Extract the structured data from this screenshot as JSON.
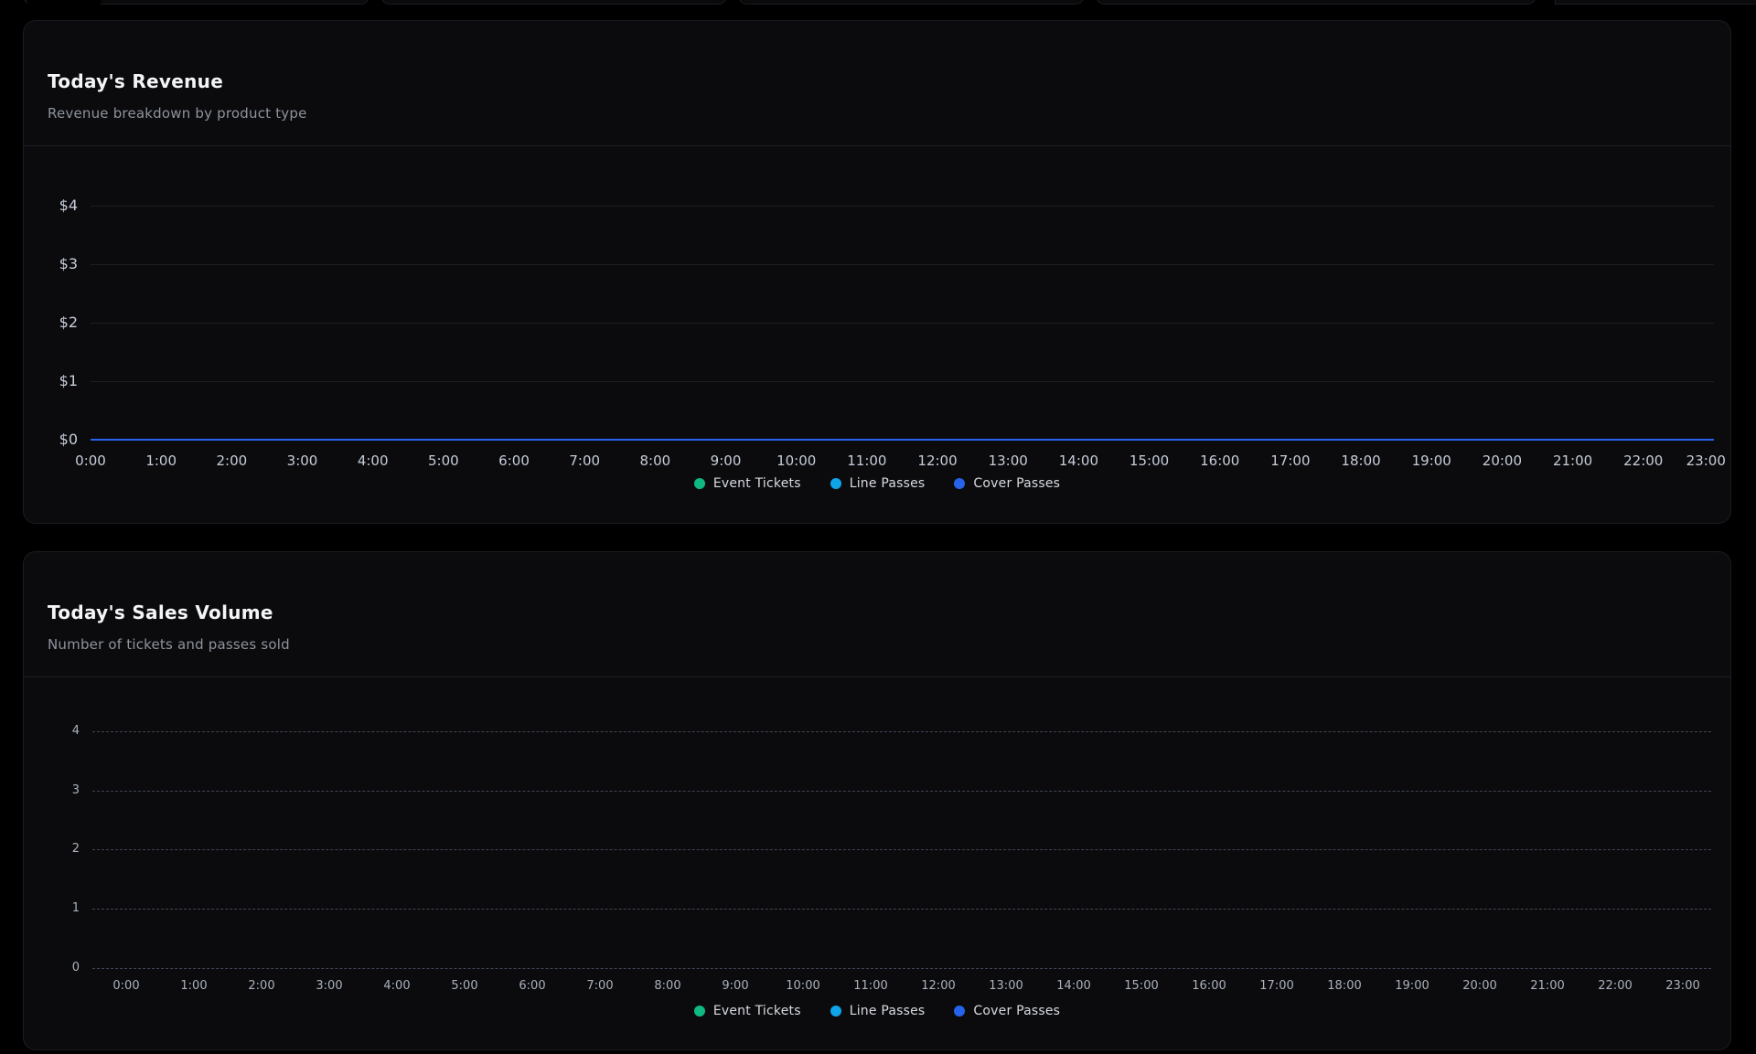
{
  "cards": [
    {
      "title": "Today's Revenue",
      "subtitle": "Revenue breakdown by product type"
    },
    {
      "title": "Today's Sales Volume",
      "subtitle": "Number of tickets and passes sold"
    }
  ],
  "colors": {
    "accent_zero_line": "#2563eb",
    "series_green": "#10b981",
    "series_sky": "#0ea5e9",
    "series_blue": "#2563eb"
  },
  "chart_data": [
    {
      "type": "line",
      "title": "Today's Revenue",
      "subtitle": "Revenue breakdown by product type",
      "x": [
        "0:00",
        "1:00",
        "2:00",
        "3:00",
        "4:00",
        "5:00",
        "6:00",
        "7:00",
        "8:00",
        "9:00",
        "10:00",
        "11:00",
        "12:00",
        "13:00",
        "14:00",
        "15:00",
        "16:00",
        "17:00",
        "18:00",
        "19:00",
        "20:00",
        "21:00",
        "22:00",
        "23:00"
      ],
      "y_ticks_top_down": [
        "$4",
        "$3",
        "$2",
        "$1",
        "$0"
      ],
      "ylabel": "",
      "xlabel": "",
      "ylim": [
        0,
        4
      ],
      "grid": "horizontal-solid",
      "legend_position": "bottom",
      "zero_line_color": "#2563eb",
      "series": [
        {
          "name": "Event Tickets",
          "color": "#10b981",
          "values": [
            0,
            0,
            0,
            0,
            0,
            0,
            0,
            0,
            0,
            0,
            0,
            0,
            0,
            0,
            0,
            0,
            0,
            0,
            0,
            0,
            0,
            0,
            0,
            0
          ]
        },
        {
          "name": "Line Passes",
          "color": "#0ea5e9",
          "values": [
            0,
            0,
            0,
            0,
            0,
            0,
            0,
            0,
            0,
            0,
            0,
            0,
            0,
            0,
            0,
            0,
            0,
            0,
            0,
            0,
            0,
            0,
            0,
            0
          ]
        },
        {
          "name": "Cover Passes",
          "color": "#2563eb",
          "values": [
            0,
            0,
            0,
            0,
            0,
            0,
            0,
            0,
            0,
            0,
            0,
            0,
            0,
            0,
            0,
            0,
            0,
            0,
            0,
            0,
            0,
            0,
            0,
            0
          ]
        }
      ]
    },
    {
      "type": "bar",
      "title": "Today's Sales Volume",
      "subtitle": "Number of tickets and passes sold",
      "x": [
        "0:00",
        "1:00",
        "2:00",
        "3:00",
        "4:00",
        "5:00",
        "6:00",
        "7:00",
        "8:00",
        "9:00",
        "10:00",
        "11:00",
        "12:00",
        "13:00",
        "14:00",
        "15:00",
        "16:00",
        "17:00",
        "18:00",
        "19:00",
        "20:00",
        "21:00",
        "22:00",
        "23:00"
      ],
      "y_ticks_top_down": [
        "4",
        "3",
        "2",
        "1",
        "0"
      ],
      "ylabel": "",
      "xlabel": "",
      "ylim": [
        0,
        4
      ],
      "grid": "horizontal-dashed",
      "legend_position": "bottom",
      "series": [
        {
          "name": "Event Tickets",
          "color": "#10b981",
          "values": [
            0,
            0,
            0,
            0,
            0,
            0,
            0,
            0,
            0,
            0,
            0,
            0,
            0,
            0,
            0,
            0,
            0,
            0,
            0,
            0,
            0,
            0,
            0,
            0
          ]
        },
        {
          "name": "Line Passes",
          "color": "#0ea5e9",
          "values": [
            0,
            0,
            0,
            0,
            0,
            0,
            0,
            0,
            0,
            0,
            0,
            0,
            0,
            0,
            0,
            0,
            0,
            0,
            0,
            0,
            0,
            0,
            0,
            0
          ]
        },
        {
          "name": "Cover Passes",
          "color": "#2563eb",
          "values": [
            0,
            0,
            0,
            0,
            0,
            0,
            0,
            0,
            0,
            0,
            0,
            0,
            0,
            0,
            0,
            0,
            0,
            0,
            0,
            0,
            0,
            0,
            0,
            0
          ]
        }
      ]
    }
  ]
}
